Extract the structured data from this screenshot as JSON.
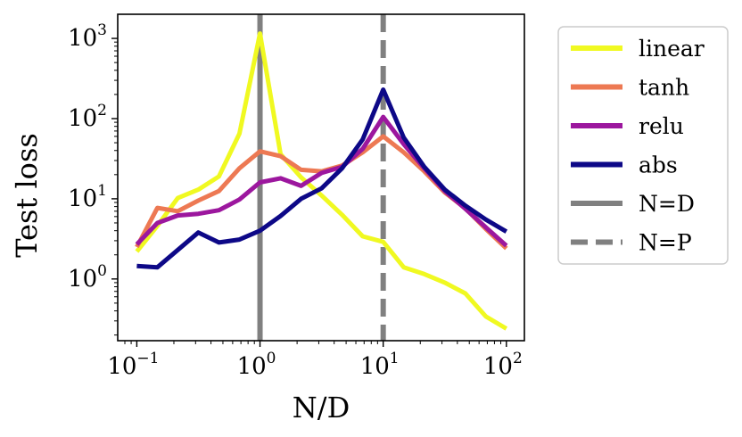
{
  "chart_data": {
    "type": "line",
    "scale": {
      "x": "log",
      "y": "log"
    },
    "xlabel": "N/D",
    "ylabel": "Test loss",
    "xlim": [
      0.07,
      140
    ],
    "ylim": [
      0.17,
      2000
    ],
    "xticks": [
      {
        "base": "10",
        "exp": "−1",
        "value": 0.1
      },
      {
        "base": "10",
        "exp": "0",
        "value": 1
      },
      {
        "base": "10",
        "exp": "1",
        "value": 10
      },
      {
        "base": "10",
        "exp": "2",
        "value": 100
      }
    ],
    "yticks": [
      {
        "base": "10",
        "exp": "0",
        "value": 1
      },
      {
        "base": "10",
        "exp": "1",
        "value": 10
      },
      {
        "base": "10",
        "exp": "2",
        "value": 100
      },
      {
        "base": "10",
        "exp": "3",
        "value": 1000
      }
    ],
    "x": [
      0.1,
      0.147,
      0.215,
      0.316,
      0.464,
      0.681,
      1.0,
      1.468,
      2.154,
      3.162,
      4.642,
      6.813,
      10.0,
      14.68,
      21.54,
      31.62,
      46.42,
      68.13,
      100.0
    ],
    "series": [
      {
        "name": "linear",
        "color": "#f0f921",
        "values": [
          2.2,
          4.6,
          10.2,
          13.0,
          19.0,
          65,
          1150,
          36,
          18.5,
          11.0,
          6.3,
          3.4,
          2.9,
          1.4,
          1.15,
          0.9,
          0.66,
          0.34,
          0.24
        ]
      },
      {
        "name": "tanh",
        "color": "#ed7953",
        "values": [
          2.5,
          7.7,
          7.0,
          9.5,
          12.5,
          24,
          39,
          34,
          23,
          22,
          26,
          38,
          60,
          38,
          22,
          12,
          7.6,
          4.2,
          2.4
        ]
      },
      {
        "name": "relu",
        "color": "#9c179e",
        "values": [
          2.7,
          5.0,
          6.2,
          6.5,
          7.2,
          9.8,
          16,
          18,
          14.5,
          21,
          25,
          42,
          105,
          48,
          24,
          12.5,
          7.5,
          4.4,
          2.6
        ]
      },
      {
        "name": "abs",
        "color": "#0d0887",
        "values": [
          1.45,
          1.4,
          2.3,
          3.8,
          2.85,
          3.1,
          4.0,
          6.1,
          10.0,
          13.5,
          24,
          55,
          230,
          58,
          25,
          13,
          8.2,
          5.5,
          3.9
        ]
      }
    ],
    "reference_lines": [
      {
        "name": "N=D",
        "x": 1,
        "color": "#808080",
        "style": "solid"
      },
      {
        "name": "N=P",
        "x": 10,
        "color": "#808080",
        "style": "dashed"
      }
    ],
    "legend": {
      "placement": "outside-right",
      "entries": [
        "linear",
        "tanh",
        "relu",
        "abs",
        "N=D",
        "N=P"
      ]
    }
  }
}
